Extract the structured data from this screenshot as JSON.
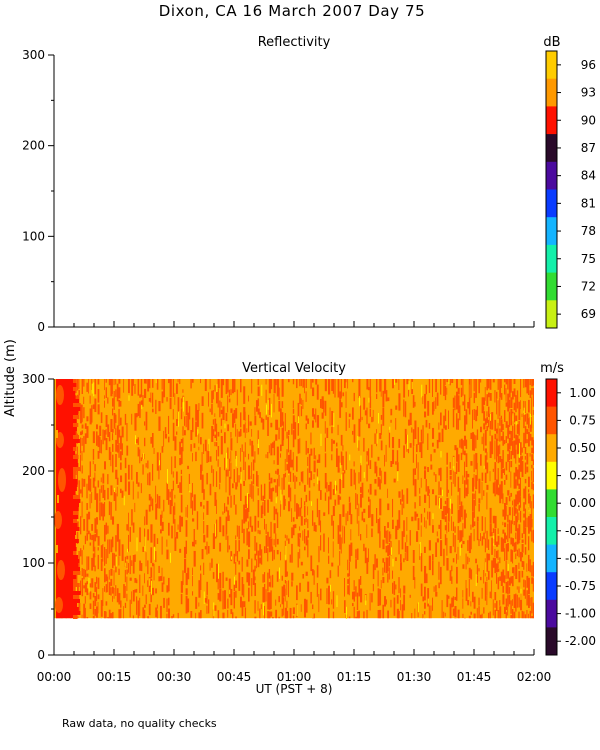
{
  "chart_data": [
    {
      "type": "heatmap",
      "title": "Dixon, CA 16 March 2007  Day  75",
      "subtitle": "Reflectivity",
      "ylabel": "Altitude (m)",
      "xlabel": "UT  (PST + 8)",
      "x_ticks": [
        "00:00",
        "00:15",
        "00:30",
        "00:45",
        "01:00",
        "01:15",
        "01:30",
        "01:45",
        "02:00"
      ],
      "y_ticks": [
        0,
        100,
        200,
        300
      ],
      "ylim": [
        0,
        300
      ],
      "values": [],
      "colorbar": {
        "unit": "dB",
        "ticks": [
          96,
          93,
          90,
          87,
          84,
          81,
          78,
          75,
          72,
          69
        ],
        "colors": [
          "#FFCC00",
          "#FF9900",
          "#FF1100",
          "#2A0A2A",
          "#4B0A9E",
          "#0A3CFF",
          "#14B4FF",
          "#14F0AA",
          "#32DC32",
          "#C8F014"
        ]
      }
    },
    {
      "type": "heatmap",
      "subtitle": "Vertical Velocity",
      "xlabel": "UT  (PST + 8)",
      "ylabel": "Altitude (m)",
      "x_ticks": [
        "00:00",
        "00:15",
        "00:30",
        "00:45",
        "01:00",
        "01:15",
        "01:30",
        "01:45",
        "02:00"
      ],
      "y_ticks": [
        0,
        100,
        200,
        300
      ],
      "ylim": [
        0,
        300
      ],
      "data_altitude_range": [
        40,
        300
      ],
      "dominant_values": [
        0.75,
        1.0
      ],
      "colorbar": {
        "unit": "m/s",
        "ticks": [
          "1.00",
          "0.75",
          "0.50",
          "0.25",
          "0.00",
          "-0.25",
          "-0.50",
          "-0.75",
          "-1.00",
          "-2.00"
        ],
        "colors": [
          "#FF1100",
          "#FF5500",
          "#FFAA00",
          "#FFFF00",
          "#32DC32",
          "#14F0AA",
          "#14B4FF",
          "#0A3CFF",
          "#4B0A9E",
          "#2A0A2A"
        ]
      }
    }
  ],
  "footer": {
    "note": "Raw data, no quality checks"
  }
}
